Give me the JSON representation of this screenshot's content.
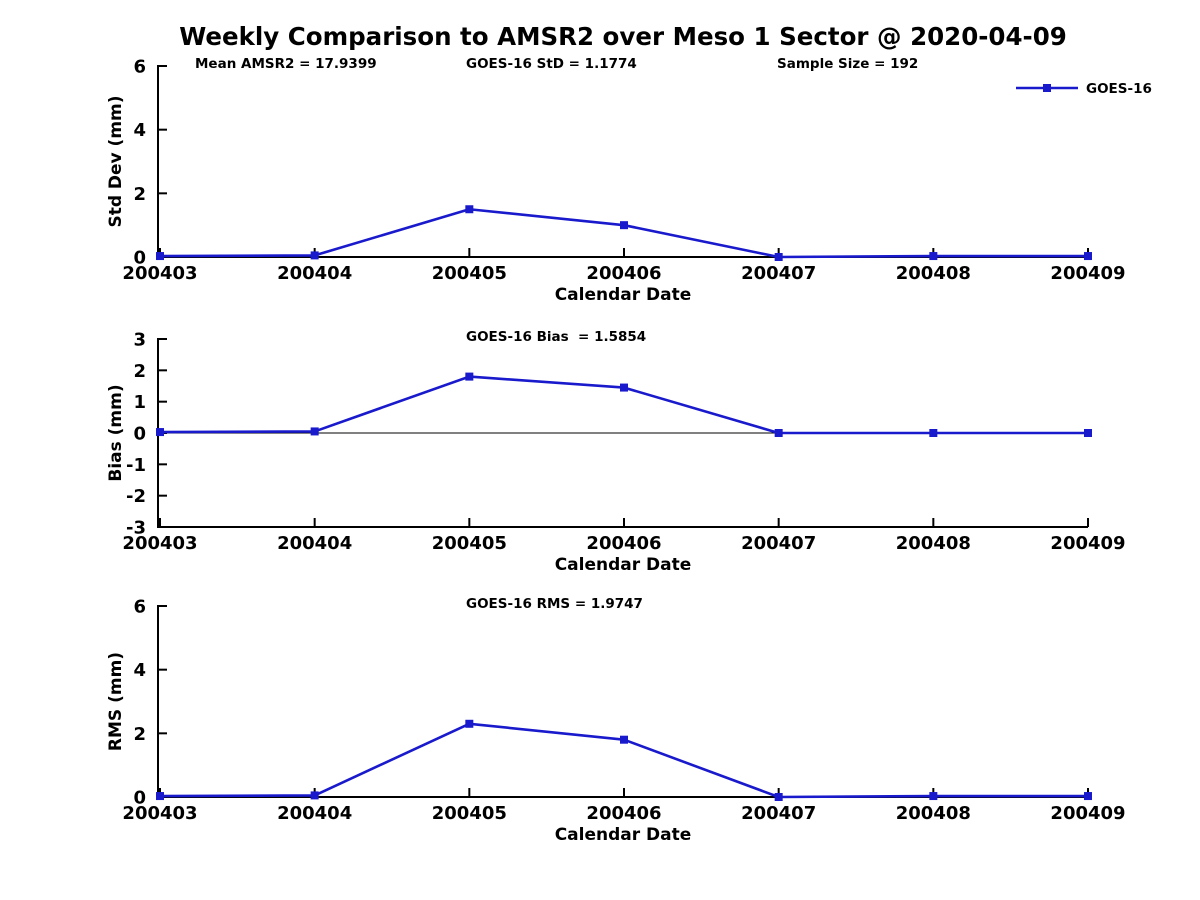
{
  "title": "Weekly Comparison to AMSR2 over Meso 1 Sector @ 2020-04-09",
  "colors": {
    "series": "#1a1acd",
    "axis": "#000000",
    "background": "#ffffff"
  },
  "chart_data": [
    {
      "type": "line",
      "panel": "std-dev",
      "categories": [
        "200403",
        "200404",
        "200405",
        "200406",
        "200407",
        "200408",
        "200409"
      ],
      "series": [
        {
          "name": "GOES-16",
          "values": [
            0.03,
            0.05,
            1.5,
            1.0,
            0.0,
            0.03,
            0.03
          ]
        }
      ],
      "title": "",
      "xlabel": "Calendar Date",
      "ylabel": "Std Dev (mm)",
      "ylim": [
        0,
        6
      ],
      "yticks": [
        0,
        2,
        4,
        6
      ],
      "grid": false,
      "zero_line": false,
      "annotations": [
        "Mean AMSR2 = 17.9399",
        "GOES-16 StD = 1.1774",
        "Sample Size = 192"
      ],
      "legend": {
        "label": "GOES-16",
        "position": "top-right"
      }
    },
    {
      "type": "line",
      "panel": "bias",
      "categories": [
        "200403",
        "200404",
        "200405",
        "200406",
        "200407",
        "200408",
        "200409"
      ],
      "series": [
        {
          "name": "GOES-16",
          "values": [
            0.03,
            0.05,
            1.8,
            1.45,
            0.0,
            0.0,
            0.0
          ]
        }
      ],
      "title": "",
      "xlabel": "Calendar Date",
      "ylabel": "Bias (mm)",
      "ylim": [
        -3,
        3
      ],
      "yticks": [
        -3,
        -2,
        -1,
        0,
        1,
        2,
        3
      ],
      "grid": false,
      "zero_line": true,
      "annotations": [
        "GOES-16 Bias  = 1.5854"
      ],
      "legend": null
    },
    {
      "type": "line",
      "panel": "rms",
      "categories": [
        "200403",
        "200404",
        "200405",
        "200406",
        "200407",
        "200408",
        "200409"
      ],
      "series": [
        {
          "name": "GOES-16",
          "values": [
            0.03,
            0.05,
            2.3,
            1.8,
            0.0,
            0.03,
            0.03
          ]
        }
      ],
      "title": "",
      "xlabel": "Calendar Date",
      "ylabel": "RMS (mm)",
      "ylim": [
        0,
        6
      ],
      "yticks": [
        0,
        2,
        4,
        6
      ],
      "grid": false,
      "zero_line": false,
      "annotations": [
        "GOES-16 RMS = 1.9747"
      ],
      "legend": null
    }
  ]
}
